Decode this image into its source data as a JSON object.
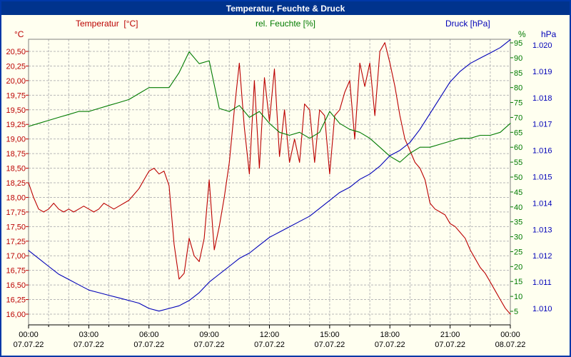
{
  "window": {
    "title": "Temperatur, Feuchte & Druck"
  },
  "legend": {
    "temperature": "Temperatur  [°C]",
    "humidity": "rel. Feuchte [%]",
    "pressure": "Druck [hPa]"
  },
  "axes": {
    "left_unit": "°C",
    "right_unit": "%",
    "far_right_unit": "hPa",
    "left_ticks": [
      "20,50",
      "20,25",
      "20,00",
      "19,75",
      "19,50",
      "19,25",
      "19,00",
      "18,75",
      "18,50",
      "18,25",
      "18,00",
      "17,75",
      "17,50",
      "17,25",
      "17,00",
      "16,75",
      "16,50",
      "16,25",
      "16,00"
    ],
    "humidity_ticks": [
      "95",
      "90",
      "85",
      "80",
      "75",
      "70",
      "65",
      "60",
      "55",
      "50",
      "45",
      "40",
      "35",
      "30",
      "25",
      "20",
      "15",
      "10",
      "5"
    ],
    "pressure_ticks": [
      "1.020",
      "1.019",
      "1.018",
      "1.017",
      "1.016",
      "1.015",
      "1.014",
      "1.013",
      "1.012",
      "1.011",
      "1.010"
    ],
    "x_ticks": [
      {
        "time": "00:00",
        "date": "07.07.22"
      },
      {
        "time": "03:00",
        "date": "07.07.22"
      },
      {
        "time": "06:00",
        "date": "07.07.22"
      },
      {
        "time": "09:00",
        "date": "07.07.22"
      },
      {
        "time": "12:00",
        "date": "07.07.22"
      },
      {
        "time": "15:00",
        "date": "07.07.22"
      },
      {
        "time": "18:00",
        "date": "07.07.22"
      },
      {
        "time": "21:00",
        "date": "07.07.22"
      },
      {
        "time": "00:00",
        "date": "08.07.22"
      }
    ]
  },
  "colors": {
    "temperature": "#bb0000",
    "humidity": "#007a00",
    "pressure": "#0000b8",
    "titlebar": "#00338d",
    "background": "#fffff0",
    "grid": "#b8b8b8"
  },
  "chart_data": {
    "type": "line",
    "title": "Temperatur, Feuchte & Druck",
    "x_unit": "hours",
    "x_range": [
      0,
      24
    ],
    "x_tick_interval_hours": 3,
    "grid": true,
    "legend_position": "top",
    "series": [
      {
        "id": "temperature",
        "name": "Temperatur",
        "unit": "°C",
        "color": "#bb0000",
        "axis": "left",
        "axis_range": [
          16.0,
          20.5
        ],
        "x_start": 0,
        "x_step": 0.25,
        "values": [
          18.25,
          18.0,
          17.8,
          17.75,
          17.8,
          17.9,
          17.8,
          17.75,
          17.8,
          17.75,
          17.8,
          17.85,
          17.8,
          17.75,
          17.8,
          17.9,
          17.85,
          17.8,
          17.85,
          17.9,
          17.95,
          18.05,
          18.15,
          18.3,
          18.45,
          18.5,
          18.4,
          18.45,
          18.2,
          17.2,
          16.6,
          16.7,
          17.3,
          17.0,
          16.9,
          17.3,
          18.3,
          17.1,
          17.5,
          18.0,
          18.6,
          19.5,
          20.3,
          19.2,
          18.4,
          20.0,
          18.5,
          20.05,
          19.3,
          20.2,
          18.7,
          19.5,
          18.6,
          19.0,
          18.6,
          19.6,
          19.5,
          18.6,
          19.5,
          19.4,
          18.4,
          19.4,
          19.5,
          19.8,
          20.0,
          19.0,
          20.3,
          19.9,
          20.3,
          19.4,
          20.5,
          20.65,
          20.3,
          19.9,
          19.4,
          19.0,
          18.8,
          18.6,
          18.5,
          18.3,
          17.9,
          17.8,
          17.75,
          17.7,
          17.55,
          17.5,
          17.4,
          17.3,
          17.1,
          16.95,
          16.8,
          16.7,
          16.55,
          16.4,
          16.25,
          16.1,
          16.0
        ]
      },
      {
        "id": "humidity",
        "name": "rel. Feuchte",
        "unit": "%",
        "color": "#007a00",
        "axis": "right",
        "axis_range": [
          5,
          95
        ],
        "x_start": 0,
        "x_step": 0.5,
        "values": [
          67,
          68,
          69,
          70,
          71,
          72,
          72,
          73,
          74,
          75,
          76,
          78,
          80,
          80,
          80,
          85,
          92,
          88,
          89,
          73,
          72,
          74,
          70,
          72,
          68,
          65,
          64,
          65,
          63,
          65,
          72,
          68,
          66,
          65,
          63,
          60,
          57,
          55,
          58,
          60,
          60,
          61,
          62,
          63,
          63,
          64,
          64,
          65,
          68
        ]
      },
      {
        "id": "pressure",
        "name": "Druck",
        "unit": "hPa",
        "color": "#0000b8",
        "axis": "far-right",
        "axis_range": [
          1.01,
          1.02
        ],
        "x_start": 0,
        "x_step": 0.5,
        "values": [
          1.0122,
          1.0119,
          1.0116,
          1.0113,
          1.0111,
          1.0109,
          1.0107,
          1.0106,
          1.0105,
          1.0104,
          1.0103,
          1.0102,
          1.01,
          1.0099,
          1.01,
          1.0101,
          1.0103,
          1.0106,
          1.011,
          1.0113,
          1.0116,
          1.0119,
          1.0121,
          1.0124,
          1.0127,
          1.0129,
          1.0131,
          1.0133,
          1.0135,
          1.0138,
          1.0141,
          1.0144,
          1.0146,
          1.0149,
          1.0151,
          1.0154,
          1.0158,
          1.016,
          1.0163,
          1.0168,
          1.0174,
          1.018,
          1.0186,
          1.019,
          1.0193,
          1.0195,
          1.0197,
          1.0199,
          1.0202
        ]
      }
    ]
  }
}
